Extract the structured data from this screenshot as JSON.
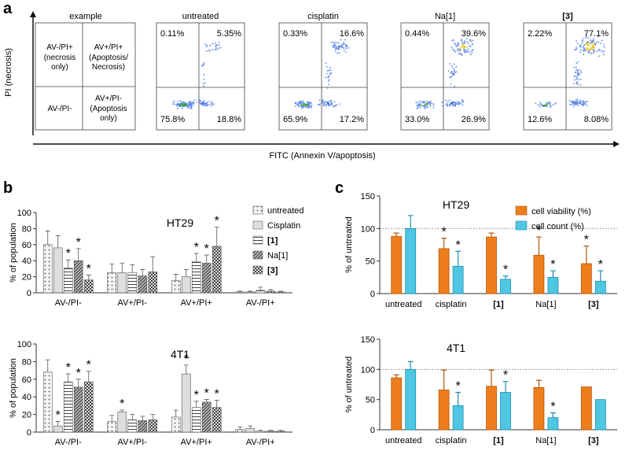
{
  "panel_labels": {
    "a": "a",
    "b": "b",
    "c": "c"
  },
  "panel_a": {
    "y_axis_label": "PI (necrosis)",
    "x_axis_label": "FITC (Annexin V/apoptosis)",
    "example": {
      "title": "example",
      "quadrants": {
        "top_left": [
          "AV-/PI+",
          "(necrosis",
          "only)"
        ],
        "top_right": [
          "AV+/PI+",
          "(Apoptosis/",
          "Necrosis)"
        ],
        "bottom_left": [
          "AV-/PI-"
        ],
        "bottom_right": [
          "AV+/PI-",
          "(Apoptosis",
          "only)"
        ]
      }
    },
    "plots": [
      {
        "title": "untreated",
        "q_tl": "0.11%",
        "q_tr": "5.35%",
        "q_bl": "75.8%",
        "q_br": "18.8%"
      },
      {
        "title": "cisplatin",
        "q_tl": "0.33%",
        "q_tr": "16.6%",
        "q_bl": "65.9%",
        "q_br": "17.2%"
      },
      {
        "title": "Na[1]",
        "q_tl": "0.44%",
        "q_tr": "39.6%",
        "q_bl": "33.0%",
        "q_br": "26.9%"
      },
      {
        "title": "[3]",
        "q_tl": "2.22%",
        "q_tr": "77.1%",
        "q_bl": "12.6%",
        "q_br": "8.08%"
      }
    ]
  },
  "chart_data": [
    {
      "id": "b_HT29",
      "type": "bar",
      "title": "HT29",
      "ylabel": "% of population",
      "ylim": [
        0,
        100
      ],
      "yticks": [
        0,
        20,
        40,
        60,
        80,
        100
      ],
      "categories": [
        "AV-/PI-",
        "AV+/PI-",
        "AV+/PI+",
        "AV-/PI+"
      ],
      "series": [
        {
          "name": "untreated",
          "values": [
            60,
            25,
            15,
            1
          ],
          "errors": [
            17,
            11,
            8,
            1
          ]
        },
        {
          "name": "Cisplatin",
          "values": [
            56,
            25,
            20,
            1
          ],
          "errors": [
            15,
            12,
            9,
            1
          ]
        },
        {
          "name": "[1]",
          "values": [
            31,
            25,
            39,
            3
          ],
          "errors": [
            10,
            10,
            10,
            4
          ]
        },
        {
          "name": "Na[1]",
          "values": [
            40,
            21,
            37,
            2
          ],
          "errors": [
            15,
            8,
            10,
            2
          ]
        },
        {
          "name": "[3]",
          "values": [
            16,
            26,
            58,
            1
          ],
          "errors": [
            6,
            19,
            24,
            1
          ]
        }
      ],
      "stars": [
        [
          2,
          0
        ],
        [
          3,
          0
        ],
        [
          4,
          0
        ],
        [
          2,
          2
        ],
        [
          3,
          2
        ],
        [
          4,
          2
        ]
      ]
    },
    {
      "id": "b_4T1",
      "type": "bar",
      "title": "4T1",
      "ylabel": "% of population",
      "ylim": [
        0,
        100
      ],
      "yticks": [
        0,
        20,
        40,
        60,
        80,
        100
      ],
      "categories": [
        "AV-/PI-",
        "AV+/PI-",
        "AV+/PI+",
        "AV-/PI+"
      ],
      "series": [
        {
          "name": "untreated",
          "values": [
            68,
            12,
            17,
            3
          ],
          "errors": [
            14,
            7,
            8,
            3
          ]
        },
        {
          "name": "Cisplatin",
          "values": [
            7,
            23,
            66,
            4
          ],
          "errors": [
            5,
            2,
            10,
            3
          ]
        },
        {
          "name": "[1]",
          "values": [
            57,
            14,
            28,
            1
          ],
          "errors": [
            9,
            6,
            7,
            1
          ]
        },
        {
          "name": "Na[1]",
          "values": [
            51,
            13,
            34,
            1
          ],
          "errors": [
            9,
            5,
            3,
            1
          ]
        },
        {
          "name": "[3]",
          "values": [
            57,
            14,
            28,
            1
          ],
          "errors": [
            12,
            6,
            8,
            1
          ]
        }
      ],
      "stars": [
        [
          1,
          0
        ],
        [
          2,
          0
        ],
        [
          3,
          0
        ],
        [
          4,
          0
        ],
        [
          1,
          1
        ],
        [
          1,
          2
        ],
        [
          2,
          2
        ],
        [
          3,
          2
        ],
        [
          4,
          2
        ]
      ]
    },
    {
      "id": "c_HT29",
      "type": "bar",
      "title": "HT29",
      "ylabel": "% of untreated",
      "ylim": [
        0,
        150
      ],
      "yticks": [
        0,
        50,
        100,
        150
      ],
      "reference_line": 100,
      "categories": [
        "untreated",
        "cisplatin",
        "[1]",
        "Na[1]",
        "[3]"
      ],
      "series": [
        {
          "name": "cell viability (%)",
          "values": [
            88,
            69,
            87,
            59,
            46
          ],
          "errors": [
            5,
            16,
            6,
            28,
            27
          ]
        },
        {
          "name": "cell count (%)",
          "values": [
            100,
            42,
            22,
            25,
            19
          ],
          "errors": [
            20,
            23,
            5,
            10,
            16
          ]
        }
      ],
      "stars": [
        [
          0,
          1
        ],
        [
          1,
          1
        ],
        [
          0,
          3
        ],
        [
          1,
          3
        ],
        [
          0,
          4
        ],
        [
          1,
          4
        ],
        [
          1,
          2
        ]
      ]
    },
    {
      "id": "c_4T1",
      "type": "bar",
      "title": "4T1",
      "ylabel": "% of untreated",
      "ylim": [
        0,
        150
      ],
      "yticks": [
        0,
        50,
        100,
        150
      ],
      "reference_line": 100,
      "categories": [
        "untreated",
        "cisplatin",
        "[1]",
        "Na[1]",
        "[3]"
      ],
      "series": [
        {
          "name": "cell viability (%)",
          "values": [
            86,
            66,
            72,
            70,
            71
          ],
          "errors": [
            5,
            33,
            27,
            12,
            0
          ]
        },
        {
          "name": "cell count (%)",
          "values": [
            100,
            40,
            62,
            20,
            50
          ],
          "errors": [
            13,
            22,
            18,
            8,
            0
          ]
        }
      ],
      "stars": [
        [
          1,
          1
        ],
        [
          1,
          2
        ],
        [
          1,
          3
        ]
      ]
    }
  ],
  "colors": {
    "orange": "#ee7d1c",
    "orange_dark": "#b35a10",
    "cyan": "#4fc6e2",
    "cyan_dark": "#1e8fb0",
    "grey_bar": "#dcdcdc",
    "axis": "#333333"
  }
}
